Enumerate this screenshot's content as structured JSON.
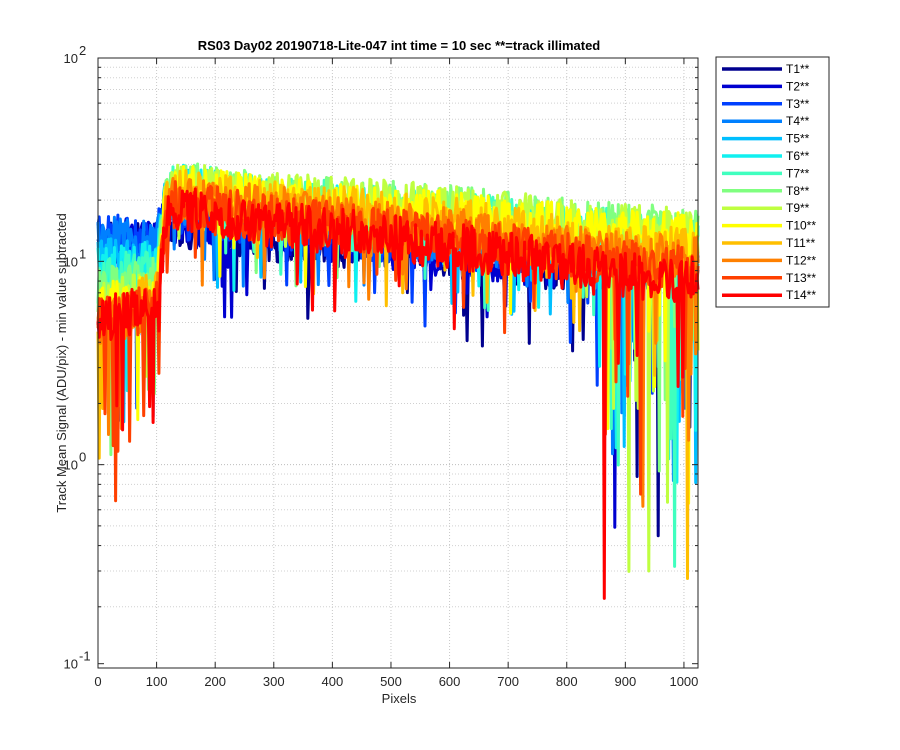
{
  "chart_data": {
    "type": "line",
    "title": "RS03 Day02 20190718-Lite-047 int time = 10 sec    **=track illimated",
    "xlabel": "Pixels",
    "ylabel": "Track Mean Signal (ADU/pix) - min value subtracted",
    "xlim": [
      0,
      1024
    ],
    "ylim": [
      0.1,
      100
    ],
    "yscale": "log",
    "grid": true,
    "legend_location": "outside-top-right",
    "x_ticks": [
      0,
      100,
      200,
      300,
      400,
      500,
      600,
      700,
      800,
      900,
      1000
    ],
    "x_tick_labels": [
      "0",
      "100",
      "200",
      "300",
      "400",
      "500",
      "600",
      "700",
      "800",
      "900",
      "1000"
    ],
    "y_tick_base": "10",
    "y_tick_exponents": [
      "-1",
      "0",
      "1",
      "2"
    ],
    "y_ticks": [
      0.1,
      1,
      10,
      100
    ],
    "series": [
      {
        "name": "T1**",
        "color": "#00008f",
        "base": 14,
        "approx_profile": [
          [
            0,
            12
          ],
          [
            100,
            12
          ],
          [
            115,
            16
          ],
          [
            130,
            15
          ],
          [
            300,
            13
          ],
          [
            600,
            11
          ],
          [
            850,
            9
          ],
          [
            1024,
            9
          ]
        ]
      },
      {
        "name": "T2**",
        "color": "#0000d0",
        "base": 13.5,
        "approx_profile": [
          [
            0,
            13
          ],
          [
            100,
            12
          ],
          [
            115,
            16
          ],
          [
            130,
            16
          ],
          [
            300,
            14
          ],
          [
            600,
            11
          ],
          [
            850,
            9
          ],
          [
            1024,
            9
          ]
        ]
      },
      {
        "name": "T3**",
        "color": "#0040ff",
        "base": 14,
        "approx_profile": [
          [
            0,
            13
          ],
          [
            100,
            13
          ],
          [
            115,
            17
          ],
          [
            130,
            17
          ],
          [
            300,
            15
          ],
          [
            600,
            12
          ],
          [
            850,
            10
          ],
          [
            1024,
            10
          ]
        ]
      },
      {
        "name": "T4**",
        "color": "#0080ff",
        "base": 14,
        "approx_profile": [
          [
            0,
            13
          ],
          [
            100,
            13
          ],
          [
            115,
            18
          ],
          [
            130,
            20
          ],
          [
            300,
            17
          ],
          [
            600,
            13
          ],
          [
            850,
            11
          ],
          [
            1024,
            11
          ]
        ]
      },
      {
        "name": "T5**",
        "color": "#00bfff",
        "base": 12,
        "approx_profile": [
          [
            0,
            10
          ],
          [
            100,
            11
          ],
          [
            115,
            19
          ],
          [
            130,
            22
          ],
          [
            300,
            18
          ],
          [
            600,
            15
          ],
          [
            850,
            12
          ],
          [
            1024,
            11
          ]
        ]
      },
      {
        "name": "T6**",
        "color": "#10f0f0",
        "base": 10,
        "approx_profile": [
          [
            0,
            9
          ],
          [
            100,
            10
          ],
          [
            115,
            20
          ],
          [
            130,
            23
          ],
          [
            300,
            19
          ],
          [
            600,
            16
          ],
          [
            850,
            13
          ],
          [
            1024,
            12
          ]
        ]
      },
      {
        "name": "T7**",
        "color": "#40ffbf",
        "base": 9,
        "approx_profile": [
          [
            0,
            8
          ],
          [
            100,
            9
          ],
          [
            115,
            20
          ],
          [
            130,
            24
          ],
          [
            300,
            20
          ],
          [
            600,
            17
          ],
          [
            850,
            14
          ],
          [
            1024,
            13
          ]
        ]
      },
      {
        "name": "T8**",
        "color": "#80ff80",
        "base": 8,
        "approx_profile": [
          [
            0,
            7
          ],
          [
            100,
            8
          ],
          [
            115,
            20
          ],
          [
            130,
            24
          ],
          [
            300,
            21
          ],
          [
            600,
            18
          ],
          [
            850,
            15
          ],
          [
            1024,
            14
          ]
        ]
      },
      {
        "name": "T9**",
        "color": "#bfff40",
        "base": 7,
        "approx_profile": [
          [
            0,
            6
          ],
          [
            100,
            7
          ],
          [
            115,
            20
          ],
          [
            130,
            24
          ],
          [
            300,
            21
          ],
          [
            600,
            18
          ],
          [
            850,
            15
          ],
          [
            1024,
            14
          ]
        ]
      },
      {
        "name": "T10**",
        "color": "#ffff00",
        "base": 6,
        "approx_profile": [
          [
            0,
            6
          ],
          [
            100,
            7
          ],
          [
            115,
            19
          ],
          [
            130,
            23
          ],
          [
            300,
            20
          ],
          [
            600,
            17
          ],
          [
            850,
            14
          ],
          [
            1024,
            13
          ]
        ]
      },
      {
        "name": "T11**",
        "color": "#ffbf00",
        "base": 6,
        "approx_profile": [
          [
            0,
            5
          ],
          [
            100,
            7
          ],
          [
            115,
            18
          ],
          [
            130,
            22
          ],
          [
            300,
            19
          ],
          [
            600,
            16
          ],
          [
            850,
            12
          ],
          [
            1024,
            11
          ]
        ]
      },
      {
        "name": "T12**",
        "color": "#ff8000",
        "base": 5,
        "approx_profile": [
          [
            0,
            5
          ],
          [
            100,
            6
          ],
          [
            115,
            17
          ],
          [
            130,
            20
          ],
          [
            300,
            18
          ],
          [
            600,
            14
          ],
          [
            850,
            11
          ],
          [
            1024,
            10
          ]
        ]
      },
      {
        "name": "T13**",
        "color": "#ff4000",
        "base": 5,
        "approx_profile": [
          [
            0,
            5
          ],
          [
            100,
            6
          ],
          [
            115,
            16
          ],
          [
            130,
            19
          ],
          [
            300,
            16
          ],
          [
            600,
            13
          ],
          [
            850,
            10
          ],
          [
            1024,
            9
          ]
        ]
      },
      {
        "name": "T14**",
        "color": "#ff0000",
        "base": 5,
        "approx_profile": [
          [
            0,
            5
          ],
          [
            100,
            6
          ],
          [
            115,
            16
          ],
          [
            130,
            18
          ],
          [
            300,
            15
          ],
          [
            600,
            12
          ],
          [
            850,
            9
          ],
          [
            1024,
            8
          ]
        ]
      }
    ]
  }
}
